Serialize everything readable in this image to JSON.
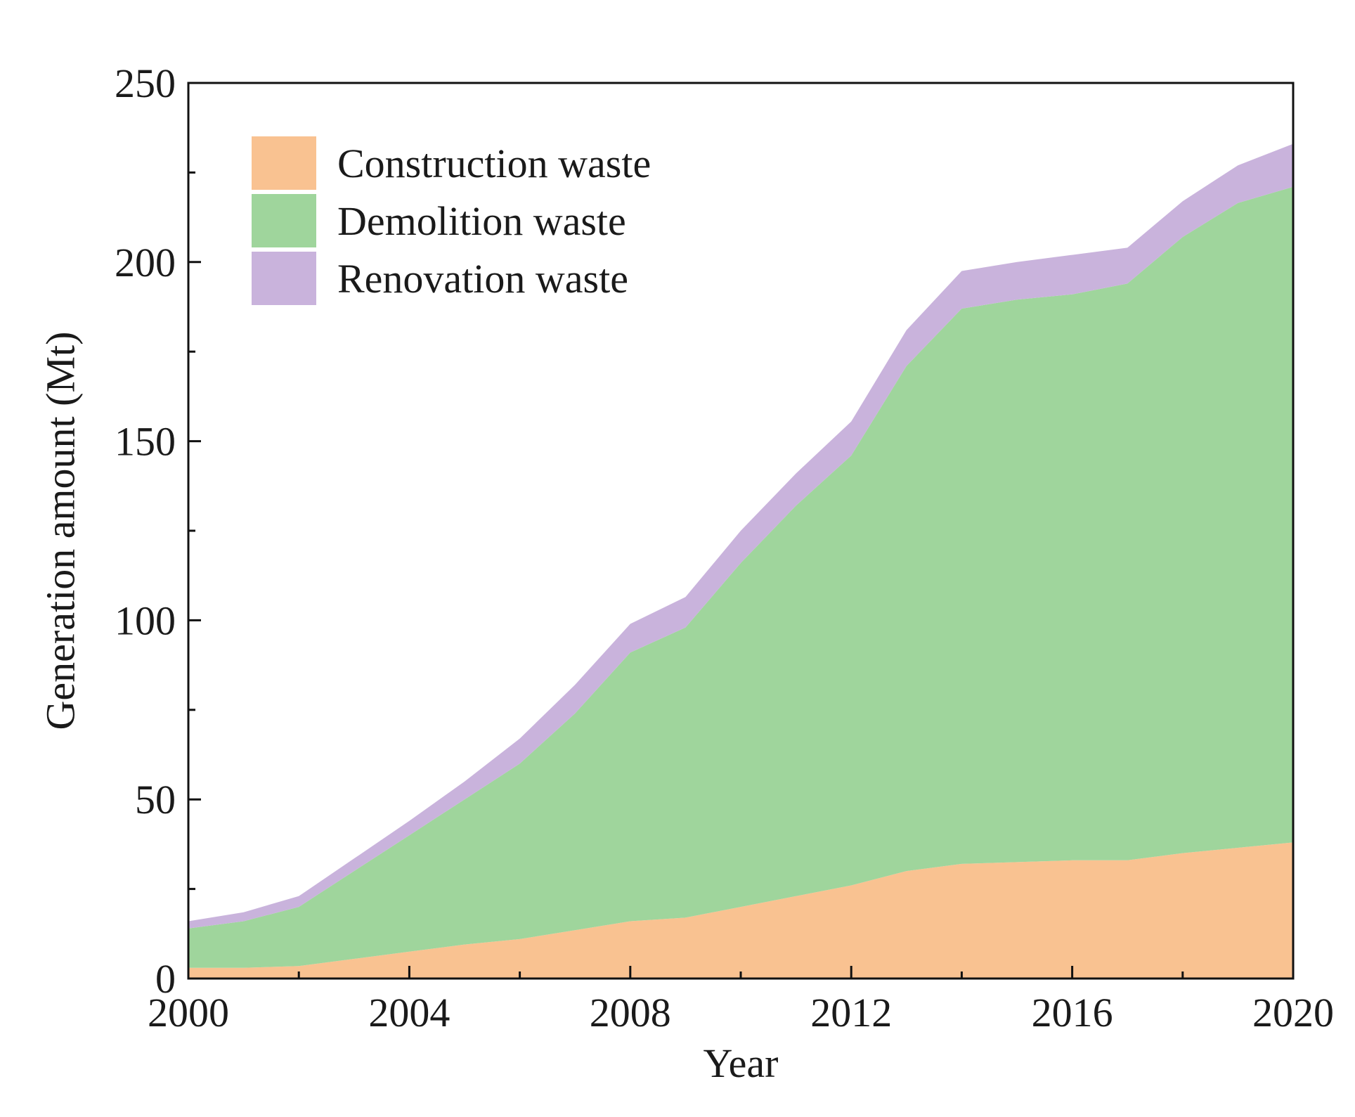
{
  "chart_data": {
    "type": "area",
    "stacked": true,
    "title": "",
    "xlabel": "Year",
    "ylabel": "Generation amount (Mt)",
    "xlim": [
      2000,
      2020
    ],
    "ylim": [
      0,
      250
    ],
    "xticks": [
      2000,
      2004,
      2008,
      2012,
      2016,
      2020
    ],
    "yticks": [
      0,
      50,
      100,
      150,
      200,
      250
    ],
    "x_minor_step": 2,
    "y_minor_step": 25,
    "legend_position": "top-left",
    "x": [
      2000,
      2001,
      2002,
      2003,
      2004,
      2005,
      2006,
      2007,
      2008,
      2009,
      2010,
      2011,
      2012,
      2013,
      2014,
      2015,
      2016,
      2017,
      2018,
      2019,
      2020
    ],
    "series": [
      {
        "name": "Construction waste",
        "color": "#f9c291",
        "values": [
          3,
          3,
          3.5,
          5.5,
          7.5,
          9.5,
          11,
          13.5,
          16,
          17,
          20,
          23,
          26,
          30,
          32,
          32.5,
          33,
          33,
          35,
          36.5,
          38
        ]
      },
      {
        "name": "Demolition waste",
        "color": "#9fd59c",
        "values": [
          11,
          13,
          16.5,
          24.5,
          32.5,
          40.5,
          49,
          60.5,
          75,
          81,
          96,
          109,
          120,
          141,
          155,
          157,
          158,
          161,
          172,
          180,
          183
        ]
      },
      {
        "name": "Renovation waste",
        "color": "#c9b3dc",
        "values": [
          2,
          2.5,
          3,
          3.5,
          4,
          5,
          7,
          8,
          8,
          8.5,
          9,
          9,
          9.5,
          10,
          10.5,
          10.5,
          11,
          10,
          10,
          10.5,
          12
        ]
      }
    ]
  }
}
